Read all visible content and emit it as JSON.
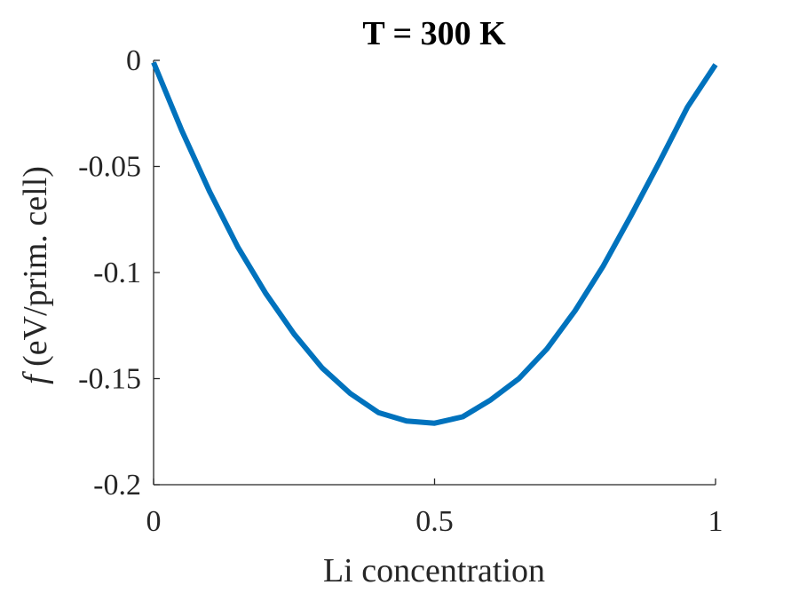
{
  "chart_data": {
    "type": "line",
    "title": "T = 300 K",
    "xlabel": "Li concentration",
    "ylabel_symbol": "f",
    "ylabel_units": " (eV/prim.  cell)",
    "xlim": [
      0,
      1
    ],
    "ylim": [
      -0.2,
      0
    ],
    "xticks": [
      0,
      0.5,
      1
    ],
    "xtick_labels": [
      "0",
      "0.5",
      "1"
    ],
    "yticks": [
      0,
      -0.05,
      -0.1,
      -0.15,
      -0.2
    ],
    "ytick_labels": [
      "0",
      "-0.05",
      "-0.1",
      "-0.15",
      "-0.2"
    ],
    "grid": false,
    "series": [
      {
        "color": "#0072bd",
        "x": [
          0,
          0.05,
          0.1,
          0.15,
          0.2,
          0.25,
          0.3,
          0.35,
          0.4,
          0.45,
          0.5,
          0.55,
          0.6,
          0.65,
          0.7,
          0.75,
          0.8,
          0.85,
          0.9,
          0.95,
          1.0
        ],
        "y": [
          -0.001,
          -0.033,
          -0.062,
          -0.088,
          -0.11,
          -0.129,
          -0.145,
          -0.157,
          -0.166,
          -0.17,
          -0.171,
          -0.168,
          -0.16,
          -0.15,
          -0.136,
          -0.118,
          -0.097,
          -0.073,
          -0.048,
          -0.022,
          -0.002
        ]
      }
    ]
  }
}
